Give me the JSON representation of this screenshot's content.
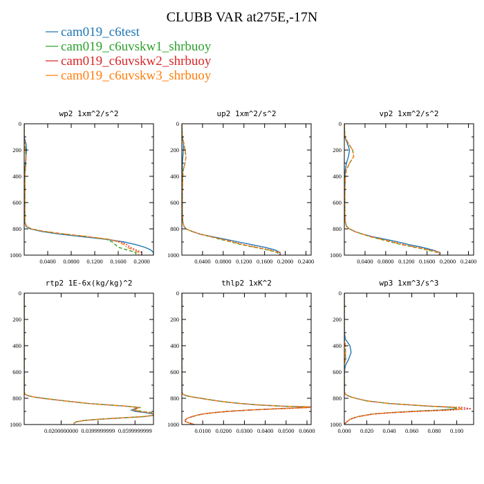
{
  "figure": {
    "title": "CLUBB VAR at275E,-17N"
  },
  "legend": [
    {
      "label": "cam019_c6test",
      "color": "#1f77b4",
      "dash": "solid"
    },
    {
      "label": "cam019_c6uvskw1_shrbuoy",
      "color": "#2ca02c",
      "dash": "dash"
    },
    {
      "label": "cam019_c6uvskw2_shrbuoy",
      "color": "#d62728",
      "dash": "dot"
    },
    {
      "label": "cam019_c6uvskw3_shrbuoy",
      "color": "#ff7f0e",
      "dash": "dashdot"
    }
  ],
  "chart_data": [
    {
      "type": "line",
      "title": "wp2  1xm^2/s^2",
      "xlim": [
        0,
        0.22
      ],
      "ylim": [
        1000,
        0
      ],
      "xticks": [
        0.04,
        0.08,
        0.12,
        0.16,
        0.2
      ],
      "xticklabels": [
        "0.0400",
        "0.0800",
        "0.1200",
        "0.1600",
        "0.2000"
      ],
      "yticks": [
        0,
        200,
        400,
        600,
        800,
        1000
      ],
      "y": [
        0,
        100,
        150,
        200,
        250,
        300,
        350,
        400,
        500,
        600,
        700,
        750,
        780,
        800,
        820,
        840,
        860,
        880,
        900,
        920,
        940,
        960,
        980,
        1000
      ],
      "series": [
        {
          "name": "cam019_c6test",
          "x": [
            0,
            0,
            0.003,
            0.004,
            0.003,
            0.002,
            0.001,
            0.001,
            0.001,
            0.001,
            0.001,
            0.001,
            0.003,
            0.01,
            0.03,
            0.06,
            0.1,
            0.14,
            0.17,
            0.19,
            0.205,
            0.215,
            0.22,
            0.22
          ]
        },
        {
          "name": "cam019_c6uvskw1_shrbuoy",
          "x": [
            0,
            0,
            0.001,
            0.002,
            0.003,
            0.003,
            0.002,
            0.001,
            0.001,
            0.001,
            0.001,
            0.001,
            0.004,
            0.012,
            0.035,
            0.07,
            0.11,
            0.14,
            0.15,
            0.155,
            0.16,
            0.175,
            0.19,
            0.19
          ]
        },
        {
          "name": "cam019_c6uvskw2_shrbuoy",
          "x": [
            0,
            0,
            0.001,
            0.002,
            0.003,
            0.003,
            0.002,
            0.001,
            0.001,
            0.001,
            0.001,
            0.001,
            0.004,
            0.012,
            0.035,
            0.07,
            0.11,
            0.145,
            0.165,
            0.175,
            0.18,
            0.19,
            0.2,
            0.2
          ]
        },
        {
          "name": "cam019_c6uvskw3_shrbuoy",
          "x": [
            0,
            0,
            0.001,
            0.002,
            0.003,
            0.003,
            0.002,
            0.001,
            0.001,
            0.001,
            0.001,
            0.001,
            0.004,
            0.012,
            0.035,
            0.07,
            0.11,
            0.145,
            0.16,
            0.17,
            0.175,
            0.185,
            0.195,
            0.195
          ]
        }
      ]
    },
    {
      "type": "line",
      "title": "up2  1xm^2/s^2",
      "xlim": [
        0,
        0.25
      ],
      "ylim": [
        1000,
        0
      ],
      "xticks": [
        0.04,
        0.08,
        0.12,
        0.16,
        0.2,
        0.24
      ],
      "xticklabels": [
        "0.0400",
        "0.0800",
        "0.1200",
        "0.1600",
        "0.2000",
        "0.2400"
      ],
      "yticks": [
        0,
        200,
        400,
        600,
        800,
        1000
      ],
      "y": [
        0,
        100,
        150,
        200,
        250,
        300,
        350,
        400,
        500,
        600,
        700,
        750,
        780,
        800,
        820,
        840,
        860,
        880,
        900,
        920,
        940,
        960,
        980,
        1000
      ],
      "series": [
        {
          "name": "cam019_c6test",
          "x": [
            0,
            0.001,
            0.003,
            0.003,
            0.002,
            0.001,
            0.001,
            0.001,
            0.001,
            0.001,
            0.001,
            0.002,
            0.004,
            0.008,
            0.02,
            0.035,
            0.06,
            0.085,
            0.11,
            0.135,
            0.16,
            0.18,
            0.19,
            0.19
          ]
        },
        {
          "name": "cam019_c6uvskw1_shrbuoy",
          "x": [
            0,
            0.001,
            0.004,
            0.006,
            0.008,
            0.006,
            0.003,
            0.002,
            0.001,
            0.001,
            0.001,
            0.002,
            0.004,
            0.008,
            0.02,
            0.035,
            0.055,
            0.075,
            0.095,
            0.115,
            0.14,
            0.165,
            0.185,
            0.185
          ]
        },
        {
          "name": "cam019_c6uvskw2_shrbuoy",
          "x": [
            0,
            0.001,
            0.004,
            0.006,
            0.008,
            0.006,
            0.003,
            0.002,
            0.001,
            0.001,
            0.001,
            0.002,
            0.004,
            0.008,
            0.02,
            0.035,
            0.058,
            0.08,
            0.1,
            0.12,
            0.145,
            0.17,
            0.19,
            0.19
          ]
        },
        {
          "name": "cam019_c6uvskw3_shrbuoy",
          "x": [
            0,
            0.001,
            0.004,
            0.006,
            0.008,
            0.006,
            0.003,
            0.002,
            0.001,
            0.001,
            0.001,
            0.002,
            0.004,
            0.008,
            0.02,
            0.035,
            0.057,
            0.078,
            0.098,
            0.118,
            0.142,
            0.168,
            0.188,
            0.188
          ]
        }
      ]
    },
    {
      "type": "line",
      "title": "vp2  1xm^2/s^2",
      "xlim": [
        0,
        0.25
      ],
      "ylim": [
        1000,
        0
      ],
      "xticks": [
        0.04,
        0.08,
        0.12,
        0.16,
        0.2,
        0.24
      ],
      "xticklabels": [
        "0.0400",
        "0.0800",
        "0.1200",
        "0.1600",
        "0.2000",
        "0.2400"
      ],
      "yticks": [
        0,
        200,
        400,
        600,
        800,
        1000
      ],
      "y": [
        0,
        100,
        150,
        200,
        250,
        300,
        350,
        400,
        500,
        600,
        700,
        750,
        780,
        800,
        820,
        840,
        860,
        880,
        900,
        920,
        940,
        960,
        980,
        1000
      ],
      "series": [
        {
          "name": "cam019_c6test",
          "x": [
            0,
            0.001,
            0.006,
            0.01,
            0.008,
            0.004,
            0.002,
            0.001,
            0.001,
            0.001,
            0.001,
            0.002,
            0.004,
            0.01,
            0.02,
            0.035,
            0.055,
            0.08,
            0.105,
            0.125,
            0.15,
            0.17,
            0.185,
            0.185
          ]
        },
        {
          "name": "cam019_c6uvskw1_shrbuoy",
          "x": [
            0,
            0.001,
            0.008,
            0.016,
            0.018,
            0.01,
            0.004,
            0.002,
            0.001,
            0.001,
            0.001,
            0.002,
            0.004,
            0.01,
            0.02,
            0.035,
            0.05,
            0.07,
            0.09,
            0.11,
            0.135,
            0.16,
            0.18,
            0.18
          ]
        },
        {
          "name": "cam019_c6uvskw2_shrbuoy",
          "x": [
            0,
            0.001,
            0.008,
            0.016,
            0.018,
            0.01,
            0.004,
            0.002,
            0.001,
            0.001,
            0.001,
            0.002,
            0.004,
            0.01,
            0.02,
            0.035,
            0.052,
            0.073,
            0.095,
            0.115,
            0.14,
            0.165,
            0.185,
            0.185
          ]
        },
        {
          "name": "cam019_c6uvskw3_shrbuoy",
          "x": [
            0,
            0.001,
            0.008,
            0.016,
            0.018,
            0.01,
            0.004,
            0.002,
            0.001,
            0.001,
            0.001,
            0.002,
            0.004,
            0.01,
            0.02,
            0.035,
            0.051,
            0.072,
            0.093,
            0.113,
            0.138,
            0.163,
            0.183,
            0.183
          ]
        }
      ]
    },
    {
      "type": "line",
      "title": "rtp2  1E-6x(kg/kg)^2",
      "xlim": [
        0,
        0.07
      ],
      "ylim": [
        1000,
        0
      ],
      "xticks": [
        0.02,
        0.04,
        0.06
      ],
      "xticklabels": [
        "0.0200000000",
        "0.0399999999",
        "0.0599999999"
      ],
      "yticks": [
        0,
        200,
        400,
        600,
        800,
        1000
      ],
      "y": [
        0,
        200,
        400,
        600,
        700,
        750,
        770,
        780,
        790,
        800,
        810,
        820,
        840,
        860,
        870,
        880,
        890,
        900,
        910,
        920,
        930,
        940,
        950,
        960,
        970,
        980,
        990,
        1000
      ],
      "series": [
        {
          "name": "cam019_c6test",
          "x": [
            0,
            0,
            0,
            0,
            0,
            0,
            0.0005,
            0.002,
            0.005,
            0.01,
            0.016,
            0.022,
            0.035,
            0.055,
            0.062,
            0.06,
            0.058,
            0.06,
            0.066,
            0.07,
            0.07,
            0.065,
            0.052,
            0.04,
            0.032,
            0.028,
            0.027,
            0.027
          ]
        },
        {
          "name": "cam019_c6uvskw1_shrbuoy",
          "x": [
            0,
            0,
            0,
            0,
            0,
            0,
            0.0005,
            0.002,
            0.005,
            0.01,
            0.016,
            0.022,
            0.035,
            0.055,
            0.063,
            0.061,
            0.06,
            0.064,
            0.07,
            0.07,
            0.07,
            0.064,
            0.052,
            0.04,
            0.032,
            0.028,
            0.027,
            0.027
          ]
        },
        {
          "name": "cam019_c6uvskw2_shrbuoy",
          "x": [
            0,
            0,
            0,
            0,
            0,
            0,
            0.0005,
            0.002,
            0.005,
            0.01,
            0.016,
            0.022,
            0.035,
            0.055,
            0.062,
            0.06,
            0.059,
            0.062,
            0.068,
            0.07,
            0.07,
            0.064,
            0.052,
            0.04,
            0.032,
            0.028,
            0.027,
            0.027
          ]
        },
        {
          "name": "cam019_c6uvskw3_shrbuoy",
          "x": [
            0,
            0,
            0,
            0,
            0,
            0,
            0.0005,
            0.002,
            0.005,
            0.01,
            0.016,
            0.022,
            0.035,
            0.055,
            0.062,
            0.061,
            0.059,
            0.063,
            0.069,
            0.07,
            0.07,
            0.064,
            0.052,
            0.04,
            0.032,
            0.028,
            0.027,
            0.027
          ]
        }
      ]
    },
    {
      "type": "line",
      "title": "thlp2  1xK^2",
      "xlim": [
        0,
        0.062
      ],
      "ylim": [
        1000,
        0
      ],
      "xticks": [
        0.01,
        0.02,
        0.03,
        0.04,
        0.05,
        0.06
      ],
      "xticklabels": [
        "0.0100",
        "0.0200",
        "0.0300",
        "0.0400",
        "0.0500",
        "0.0600"
      ],
      "yticks": [
        0,
        200,
        400,
        600,
        800,
        1000
      ],
      "y": [
        0,
        200,
        400,
        600,
        700,
        750,
        770,
        780,
        790,
        800,
        810,
        820,
        830,
        840,
        850,
        860,
        865,
        870,
        880,
        890,
        900,
        910,
        920,
        930,
        940,
        950,
        960,
        970,
        980,
        990,
        1000
      ],
      "series": [
        {
          "name": "cam019_c6test",
          "x": [
            0,
            0,
            0,
            0,
            0,
            0,
            0.0005,
            0.002,
            0.005,
            0.009,
            0.013,
            0.017,
            0.022,
            0.028,
            0.036,
            0.048,
            0.06,
            0.06,
            0.045,
            0.032,
            0.022,
            0.015,
            0.01,
            0.007,
            0.005,
            0.003,
            0.002,
            0.0015,
            0.002,
            0.004,
            0.006
          ]
        },
        {
          "name": "cam019_c6uvskw1_shrbuoy",
          "x": [
            0,
            0,
            0,
            0,
            0,
            0,
            0.0005,
            0.002,
            0.005,
            0.009,
            0.013,
            0.017,
            0.022,
            0.028,
            0.036,
            0.048,
            0.061,
            0.061,
            0.046,
            0.032,
            0.022,
            0.015,
            0.01,
            0.007,
            0.005,
            0.003,
            0.002,
            0.0015,
            0.002,
            0.004,
            0.006
          ]
        },
        {
          "name": "cam019_c6uvskw2_shrbuoy",
          "x": [
            0,
            0,
            0,
            0,
            0,
            0,
            0.0005,
            0.002,
            0.005,
            0.009,
            0.013,
            0.017,
            0.022,
            0.028,
            0.036,
            0.048,
            0.062,
            0.062,
            0.046,
            0.032,
            0.022,
            0.015,
            0.01,
            0.007,
            0.005,
            0.003,
            0.002,
            0.0015,
            0.002,
            0.004,
            0.006
          ]
        },
        {
          "name": "cam019_c6uvskw3_shrbuoy",
          "x": [
            0,
            0,
            0,
            0,
            0,
            0,
            0.0005,
            0.002,
            0.005,
            0.009,
            0.013,
            0.017,
            0.022,
            0.028,
            0.036,
            0.048,
            0.061,
            0.061,
            0.046,
            0.032,
            0.022,
            0.015,
            0.01,
            0.007,
            0.005,
            0.003,
            0.002,
            0.0015,
            0.002,
            0.004,
            0.006
          ]
        }
      ]
    },
    {
      "type": "line",
      "title": "wp3  1xm^3/s^3",
      "xlim": [
        0,
        0.115
      ],
      "ylim": [
        1000,
        0
      ],
      "xticks": [
        0,
        0.02,
        0.04,
        0.06,
        0.08,
        0.1
      ],
      "xticklabels": [
        "0.000",
        "0.020",
        "0.040",
        "0.060",
        "0.080",
        "0.100"
      ],
      "yticks": [
        0,
        200,
        400,
        600,
        800,
        1000
      ],
      "y": [
        0,
        300,
        350,
        400,
        450,
        500,
        550,
        600,
        700,
        750,
        770,
        780,
        790,
        800,
        820,
        840,
        860,
        870,
        880,
        890,
        900,
        910,
        920,
        940,
        960,
        980,
        1000
      ],
      "series": [
        {
          "name": "cam019_c6test",
          "x": [
            0,
            0,
            0.001,
            0.005,
            0.006,
            0.004,
            0.001,
            0,
            0,
            0,
            0.001,
            0.003,
            0.006,
            0.01,
            0.02,
            0.04,
            0.075,
            0.098,
            0.1,
            0.085,
            0.06,
            0.04,
            0.025,
            0.012,
            0.005,
            0.002,
            0
          ]
        },
        {
          "name": "cam019_c6uvskw1_shrbuoy",
          "x": [
            0,
            0,
            0,
            0.001,
            0.001,
            0.001,
            0,
            0,
            0,
            0,
            0.001,
            0.003,
            0.006,
            0.01,
            0.02,
            0.04,
            0.075,
            0.098,
            0.1,
            0.085,
            0.06,
            0.04,
            0.025,
            0.012,
            0.005,
            0.002,
            0
          ]
        },
        {
          "name": "cam019_c6uvskw2_shrbuoy",
          "x": [
            0,
            0,
            0,
            0.001,
            0.001,
            0.001,
            0,
            0,
            0,
            0,
            0.001,
            0.003,
            0.006,
            0.01,
            0.02,
            0.04,
            0.078,
            0.105,
            0.113,
            0.095,
            0.065,
            0.042,
            0.026,
            0.012,
            0.005,
            0.002,
            0
          ]
        },
        {
          "name": "cam019_c6uvskw3_shrbuoy",
          "x": [
            0,
            0,
            0,
            0.001,
            0.001,
            0.001,
            0,
            0,
            0,
            0,
            0.001,
            0.003,
            0.006,
            0.01,
            0.02,
            0.04,
            0.076,
            0.1,
            0.105,
            0.09,
            0.062,
            0.041,
            0.025,
            0.012,
            0.005,
            0.002,
            0
          ]
        }
      ]
    }
  ]
}
